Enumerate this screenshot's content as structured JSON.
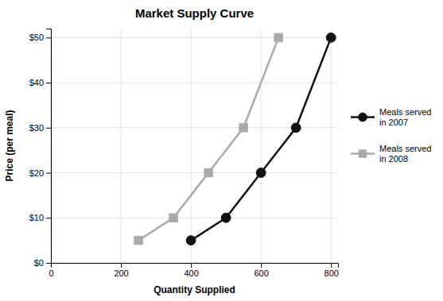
{
  "chart_data": {
    "type": "line",
    "title": "Market Supply Curve",
    "xlabel": "Quantity Supplied",
    "ylabel": "Price (per meal)",
    "series": [
      {
        "name": "Meals served\nin 2007",
        "color": "#111111",
        "marker": "circle",
        "line_style": "solid",
        "x": [
          400,
          500,
          600,
          700,
          800
        ],
        "values": [
          5,
          10,
          20,
          30,
          50
        ]
      },
      {
        "name": "Meals served\nin 2008",
        "color": "#aaaaaa",
        "marker": "square",
        "line_style": "solid",
        "x": [
          250,
          350,
          450,
          550,
          650
        ],
        "values": [
          5,
          10,
          20,
          30,
          50
        ]
      }
    ],
    "xlim": [
      0,
      820
    ],
    "ylim": [
      0,
      52
    ],
    "xticks": [
      0,
      200,
      400,
      600,
      800
    ],
    "yticks": [
      {
        "value": 0,
        "label": "$0"
      },
      {
        "value": 10,
        "label": "$10"
      },
      {
        "value": 20,
        "label": "$20"
      },
      {
        "value": 30,
        "label": "$30"
      },
      {
        "value": 40,
        "label": "$40"
      },
      {
        "value": 50,
        "label": "$50"
      }
    ],
    "grid": true,
    "legend": "right"
  }
}
